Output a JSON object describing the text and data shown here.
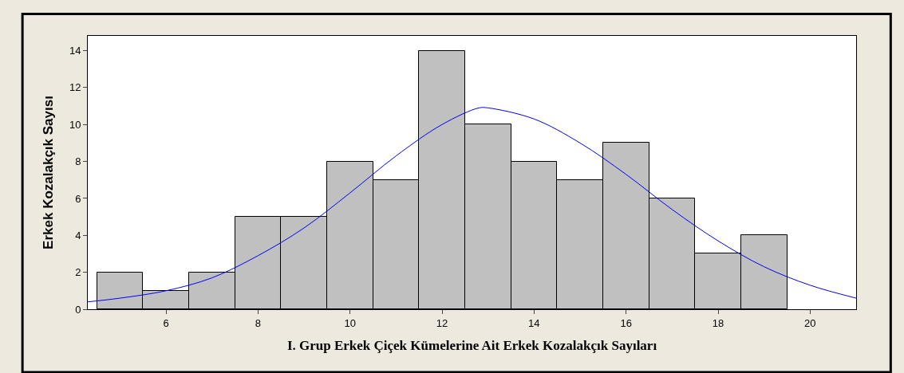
{
  "chart_data": {
    "type": "histogram",
    "xlabel": "I. Grup Erkek Çiçek Kümelerine Ait Erkek Kozalakçık Sayıları",
    "ylabel": "Erkek Kozalakçık Sayısı",
    "bins": [
      4.5,
      5.5,
      6.5,
      7.5,
      8.5,
      9.5,
      10.5,
      11.5,
      12.5,
      13.5,
      14.5,
      15.5,
      16.5,
      17.5,
      18.5,
      19.5
    ],
    "values": [
      2,
      1,
      2,
      5,
      5,
      8,
      7,
      14,
      10,
      8,
      7,
      9,
      6,
      3,
      4
    ],
    "color": "#c0c0c0",
    "series": [
      {
        "type": "line",
        "color": "#0000ff",
        "x": [
          4.3,
          5,
          6,
          7,
          8,
          9,
          10,
          11,
          12,
          12.8,
          13,
          14,
          15,
          16,
          17,
          18,
          19,
          20,
          21
        ],
        "values": [
          0.4,
          0.6,
          1.0,
          1.7,
          2.9,
          4.4,
          6.3,
          8.3,
          10.0,
          10.9,
          10.9,
          10.3,
          9.0,
          7.3,
          5.4,
          3.7,
          2.3,
          1.3,
          0.6
        ]
      }
    ],
    "xlim": [
      4.3,
      21
    ],
    "xticks": [
      6,
      8,
      10,
      12,
      14,
      16,
      18,
      20
    ],
    "ylim": [
      0,
      14.8
    ],
    "yticks": [
      0,
      2,
      4,
      6,
      8,
      10,
      12,
      14
    ]
  }
}
